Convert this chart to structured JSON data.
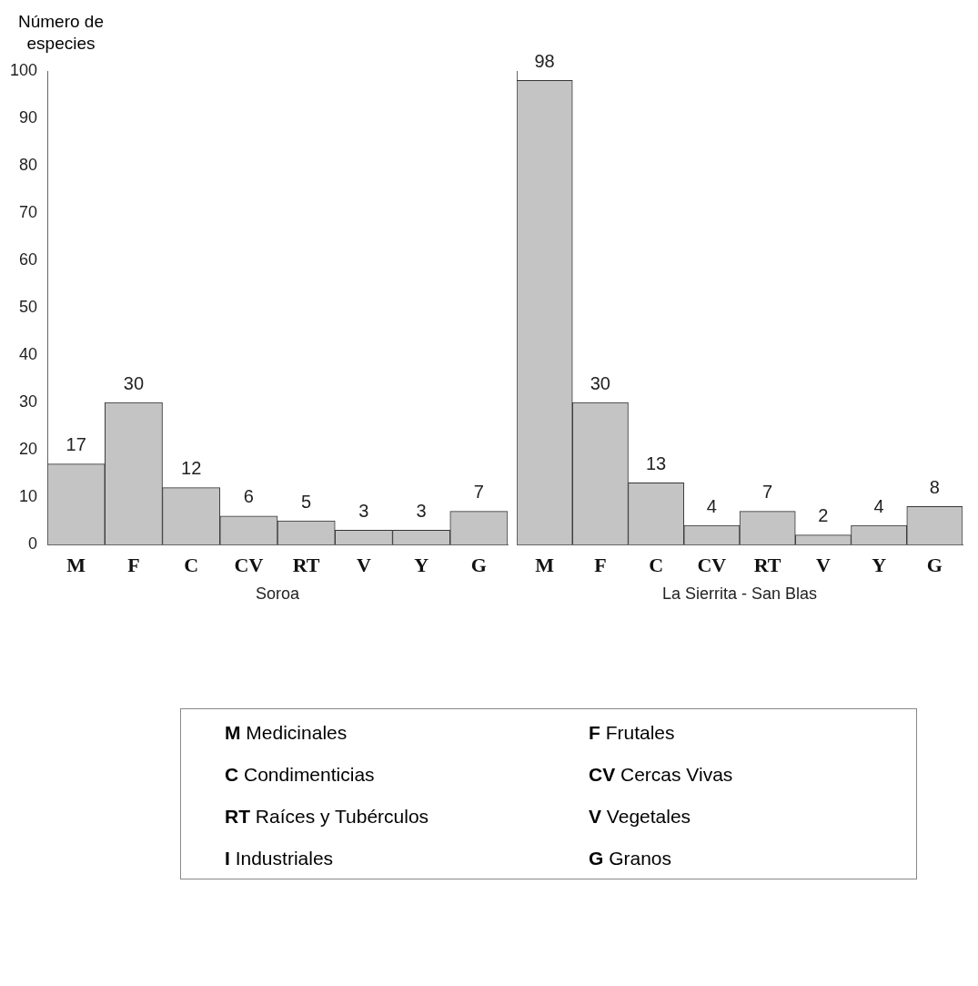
{
  "chart_data": [
    {
      "type": "bar",
      "ylabel": "Número de especies",
      "xlabel": "Soroa",
      "categories": [
        "M",
        "F",
        "C",
        "CV",
        "RT",
        "V",
        "Y",
        "G"
      ],
      "values": [
        17,
        30,
        12,
        6,
        5,
        3,
        3,
        7
      ],
      "color": "#c4c4c4",
      "ylim": [
        0,
        100
      ],
      "yticks": [
        0,
        10,
        20,
        30,
        40,
        50,
        60,
        70,
        80,
        90,
        100
      ],
      "data_labels": true
    },
    {
      "type": "bar",
      "xlabel": "La Sierrita - San Blas",
      "categories": [
        "M",
        "F",
        "C",
        "CV",
        "RT",
        "V",
        "Y",
        "G"
      ],
      "values": [
        98,
        30,
        13,
        4,
        7,
        2,
        4,
        8
      ],
      "color": "#c4c4c4",
      "ylim": [
        0,
        100
      ],
      "yticks": [
        0,
        10,
        20,
        30,
        40,
        50,
        60,
        70,
        80,
        90,
        100
      ],
      "data_labels": true,
      "tick_labels": "x"
    },
    {
      "type": "other",
      "annotations": [
        "M Medicinales",
        "F Frutales",
        "C Condimenticias",
        "CV Cercas Vivas",
        "RT Raíces y Tubérculos",
        "V Vegetales",
        "I Industriales",
        "G Granos"
      ]
    }
  ]
}
